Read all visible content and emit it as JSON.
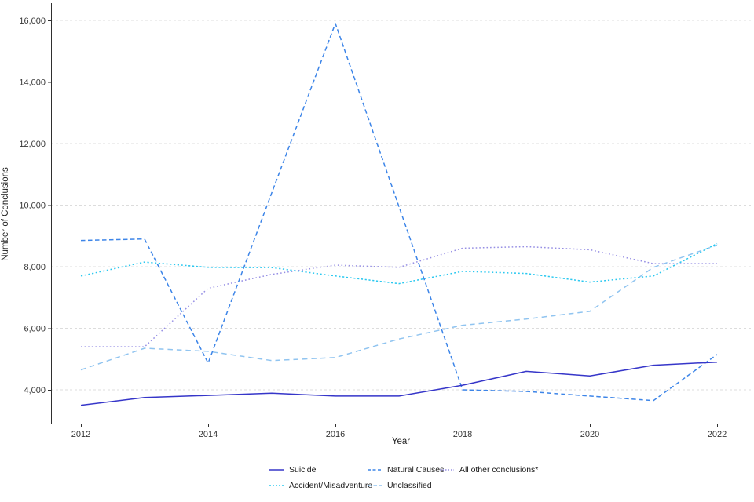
{
  "chart_data": {
    "type": "line",
    "title": "",
    "xlabel": "Year",
    "ylabel": "Number of Conclusions",
    "x": [
      2012,
      2013,
      2014,
      2015,
      2016,
      2017,
      2018,
      2019,
      2020,
      2021,
      2022
    ],
    "x_ticks": [
      2012,
      2014,
      2016,
      2018,
      2020,
      2022
    ],
    "x_tick_labels": [
      "2012",
      "2014",
      "2016",
      "2018",
      "2020",
      "2022"
    ],
    "y_ticks": [
      4000,
      6000,
      8000,
      10000,
      12000,
      14000,
      16000
    ],
    "y_tick_labels": [
      "4,000",
      "6,000",
      "8,000",
      "10,000",
      "12,000",
      "14,000",
      "16,000"
    ],
    "ylim": [
      2900,
      16500
    ],
    "grid": "horizontal-dashed",
    "grid_color": "#dcdcdc",
    "axis_color": "#2f2f2f",
    "legend_position": "bottom",
    "series": [
      {
        "name": "Suicide",
        "color": "#3636c9",
        "dash": "solid",
        "values": [
          3500,
          3750,
          3820,
          3890,
          3800,
          3800,
          4150,
          4600,
          4450,
          4800,
          4900
        ]
      },
      {
        "name": "Natural Causes",
        "color": "#3d85e8",
        "dash": "dashed",
        "values": [
          8850,
          8900,
          4870,
          10400,
          15900,
          9950,
          4000,
          3950,
          3800,
          3650,
          5150
        ]
      },
      {
        "name": "Accident/Misadventure",
        "color": "#29c8f0",
        "dash": "dotted",
        "values": [
          7700,
          8150,
          7980,
          7970,
          7700,
          7450,
          7850,
          7780,
          7500,
          7700,
          8750
        ]
      },
      {
        "name": "Unclassified",
        "color": "#90c4f0",
        "dash": "long-dash",
        "values": [
          4650,
          5350,
          5250,
          4950,
          5050,
          5650,
          6100,
          6300,
          6550,
          7980,
          8700
        ]
      },
      {
        "name": "All other conclusions*",
        "color": "#968fe4",
        "dash": "fine-dot",
        "values": [
          5400,
          5400,
          7300,
          7750,
          8050,
          7980,
          8600,
          8650,
          8550,
          8100,
          8100
        ]
      }
    ],
    "legend_rows": [
      [
        "Suicide",
        "Natural Causes",
        "All other conclusions*"
      ],
      [
        "Accident/Misadventure",
        "Unclassified"
      ]
    ]
  }
}
